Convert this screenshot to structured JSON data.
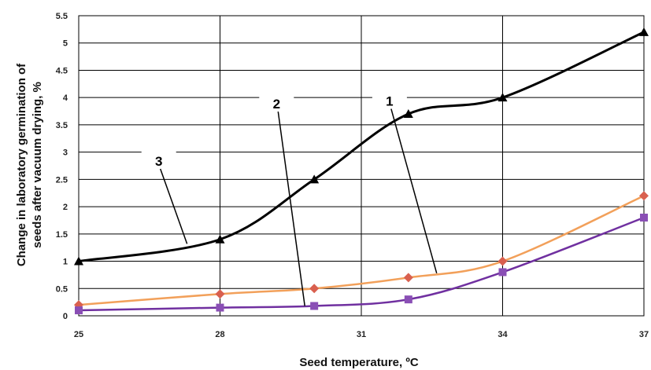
{
  "chart_data": {
    "type": "line",
    "title": "",
    "xlabel": "Seed temperature, ºC",
    "ylabel_line1": "Change in laboratory germination of",
    "ylabel_line2": "seeds after vacuum drying, %",
    "xlim": [
      25,
      37
    ],
    "ylim": [
      0,
      5.5
    ],
    "x_ticks": [
      25,
      28,
      31,
      34,
      37
    ],
    "y_ticks": [
      0,
      0.5,
      1,
      1.5,
      2,
      2.5,
      3,
      3.5,
      4,
      4.5,
      5,
      5.5
    ],
    "grid": "major",
    "legend": "none",
    "series": [
      {
        "label": "1",
        "color": "#000000",
        "marker": "triangle",
        "x": [
          25,
          28,
          30,
          32,
          34,
          37
        ],
        "y": [
          1.0,
          1.4,
          2.5,
          3.7,
          4.0,
          5.2
        ]
      },
      {
        "label": "2",
        "color": "#f2a05a",
        "marker_color": "#d9604f",
        "marker": "diamond",
        "x": [
          25,
          28,
          30,
          32,
          34,
          37
        ],
        "y": [
          0.2,
          0.4,
          0.5,
          0.7,
          1.0,
          2.2
        ]
      },
      {
        "label": "3",
        "color": "#7030a0",
        "marker_color": "#8a4fb5",
        "marker": "square",
        "x": [
          25,
          28,
          30,
          32,
          34,
          37
        ],
        "y": [
          0.1,
          0.15,
          0.18,
          0.3,
          0.8,
          1.8
        ]
      }
    ],
    "annotations": [
      {
        "text": "1",
        "x": 31.6,
        "y": 3.85,
        "target_x": 32.6,
        "target_y": 0.78
      },
      {
        "text": "2",
        "x": 29.2,
        "y": 3.8,
        "target_x": 29.8,
        "target_y": 0.18
      },
      {
        "text": "3",
        "x": 26.7,
        "y": 2.75,
        "target_x": 27.3,
        "target_y": 1.32
      }
    ]
  }
}
